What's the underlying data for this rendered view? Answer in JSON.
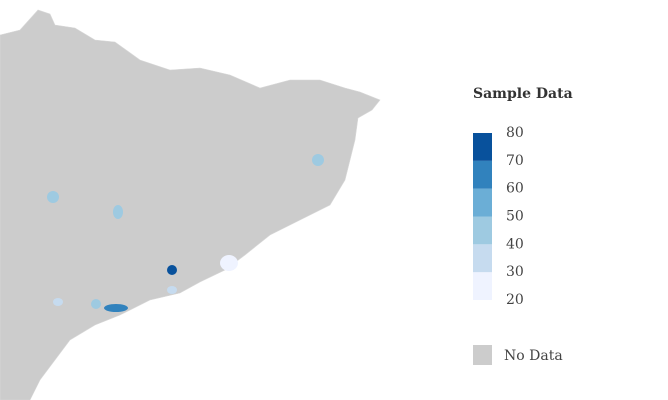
{
  "chart_data": {
    "type": "choropleth",
    "title": "Sample Data",
    "legend": {
      "ticks": [
        20,
        30,
        40,
        50,
        60,
        70,
        80
      ],
      "colors": [
        "#eff3ff",
        "#c6dbef",
        "#9ecae1",
        "#6baed6",
        "#3182bd",
        "#08519c"
      ],
      "no_data_label": "No Data",
      "no_data_color": "#cccccc"
    },
    "values": [
      75,
      65,
      45,
      45,
      45,
      25,
      45,
      35,
      35
    ]
  }
}
